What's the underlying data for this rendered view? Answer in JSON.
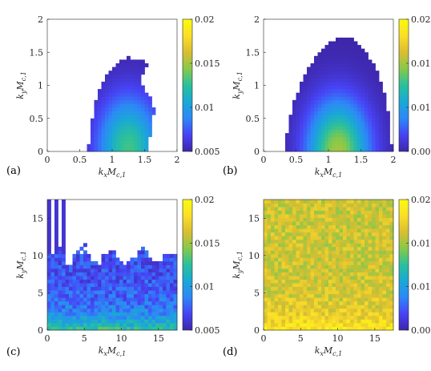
{
  "colors": {
    "colormap": [
      "#3e26a8",
      "#4743f5",
      "#2e87f7",
      "#1aa8d6",
      "#2ac09c",
      "#86c94a",
      "#d9be32",
      "#fbde28",
      "#f9fb0e"
    ],
    "axis": "#262626"
  },
  "chart_data": [
    {
      "type": "heatmap",
      "panel_label": "(a)",
      "xlabel": "k_x M_{c,1}",
      "ylabel": "k_y M_{c,1}",
      "xlim": [
        0,
        2
      ],
      "ylim": [
        0,
        2
      ],
      "xticks": [
        "0",
        "0.5",
        "1",
        "1.5",
        "2"
      ],
      "yticks": [
        "0",
        "0.5",
        "1",
        "1.5",
        "2"
      ],
      "colorbar": {
        "range": [
          0.005,
          0.02
        ],
        "ticks": [
          "0.005",
          "0.01",
          "0.015",
          "0.02"
        ]
      },
      "region_boundary": [
        [
          0.62,
          0
        ],
        [
          0.72,
          0.7
        ],
        [
          0.82,
          1.0
        ],
        [
          0.95,
          1.22
        ],
        [
          1.1,
          1.35
        ],
        [
          1.25,
          1.43
        ],
        [
          1.45,
          1.38
        ],
        [
          1.55,
          1.3
        ],
        [
          1.42,
          1.12
        ],
        [
          1.52,
          0.88
        ],
        [
          1.62,
          0.78
        ],
        [
          1.65,
          0.6
        ],
        [
          1.6,
          0.3
        ],
        [
          1.55,
          0
        ]
      ],
      "peak": {
        "kx": 1.25,
        "ky": 0.05,
        "value": 0.013
      },
      "edge_value": 0.005
    },
    {
      "type": "heatmap",
      "panel_label": "(b)",
      "xlabel": "k_x M_{c,1}",
      "ylabel": "k_y M_{c,1}",
      "xlim": [
        0,
        2
      ],
      "ylim": [
        0,
        2
      ],
      "xticks": [
        "0",
        "0.5",
        "1",
        "1.5",
        "2"
      ],
      "yticks": [
        "0",
        "0.5",
        "1",
        "1.5",
        "2"
      ],
      "colorbar": {
        "range": [
          0.005,
          0.02
        ],
        "ticks": [
          "0.005",
          "0.01",
          "0.015",
          "0.02"
        ]
      },
      "region_boundary": [
        [
          0.3,
          0
        ],
        [
          0.45,
          0.7
        ],
        [
          0.65,
          1.2
        ],
        [
          0.9,
          1.55
        ],
        [
          1.1,
          1.7
        ],
        [
          1.32,
          1.73
        ],
        [
          1.55,
          1.55
        ],
        [
          1.75,
          1.25
        ],
        [
          1.88,
          0.8
        ],
        [
          1.95,
          0.4
        ],
        [
          1.98,
          0
        ]
      ],
      "peak": {
        "kx": 1.15,
        "ky": 0.0,
        "value": 0.015
      },
      "edge_value": 0.005
    },
    {
      "type": "heatmap",
      "panel_label": "(c)",
      "xlabel": "k_x M_{c,1}",
      "ylabel": "k_y M_{c,1}",
      "xlim": [
        0,
        17.5
      ],
      "ylim": [
        0,
        17.5
      ],
      "xticks": [
        "0",
        "5",
        "10",
        "15"
      ],
      "yticks": [
        "0",
        "5",
        "10",
        "15"
      ],
      "colorbar": {
        "range": [
          0.005,
          0.02
        ],
        "ticks": [
          "0.005",
          "0.01",
          "0.015",
          "0.02"
        ]
      },
      "fill_height": 10,
      "vertical_streaks_kx": [
        0.3,
        1.3,
        2.3
      ],
      "base_value": 0.007,
      "low_ky_value": 0.013
    },
    {
      "type": "heatmap",
      "panel_label": "(d)",
      "xlabel": "k_x M_{c,1}",
      "ylabel": "k_y M_{c,1}",
      "xlim": [
        0,
        17.5
      ],
      "ylim": [
        0,
        17.5
      ],
      "xticks": [
        "0",
        "5",
        "10",
        "15"
      ],
      "yticks": [
        "0",
        "5",
        "10",
        "15"
      ],
      "colorbar": {
        "range": [
          0.005,
          0.02
        ],
        "ticks": [
          "0.005",
          "0.01",
          "0.015",
          "0.02"
        ]
      },
      "fill_height": 17.5,
      "vertical_streaks_kx": [
        0.3,
        1.3,
        2.3
      ],
      "base_value": 0.016,
      "low_ky_value": 0.019
    }
  ]
}
